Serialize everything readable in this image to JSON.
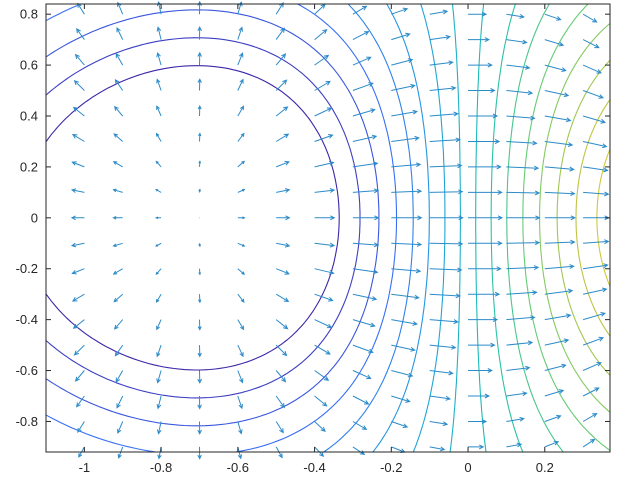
{
  "chart_data": {
    "type": "contour",
    "overlay": "quiver",
    "title": "",
    "xlabel": "",
    "ylabel": "",
    "xlim": [
      -1.1,
      0.37
    ],
    "ylim": [
      -0.92,
      0.84
    ],
    "xticks": [
      -1,
      -0.8,
      -0.6,
      -0.4,
      -0.2,
      0,
      0.2
    ],
    "xtick_labels": [
      "-1",
      "-0.8",
      "-0.6",
      "-0.4",
      "-0.2",
      "0",
      "0.2"
    ],
    "yticks": [
      0.8,
      0.6,
      0.4,
      0.2,
      0,
      -0.2,
      -0.4,
      -0.6,
      -0.8
    ],
    "ytick_labels": [
      "0.8",
      "0.6",
      "0.4",
      "0.2",
      "0",
      "-0.2",
      "-0.4",
      "-0.6",
      "-0.8"
    ],
    "grid": false,
    "legend": "none",
    "function": "z = x*exp(-x^2 - y^2)",
    "contour_levels": [
      -0.3,
      -0.26,
      -0.22,
      -0.18,
      -0.14,
      -0.1,
      -0.06,
      -0.02,
      0.02,
      0.06,
      0.1,
      0.14,
      0.18,
      0.22,
      0.26,
      0.3,
      0.34,
      0.38
    ],
    "quiver_grid": {
      "x": [
        -1,
        -0.9,
        -0.8,
        -0.7,
        -0.6,
        -0.5,
        -0.4,
        -0.3,
        -0.2,
        -0.1,
        0,
        0.1,
        0.2,
        0.3
      ],
      "y": [
        0.8,
        0.7,
        0.6,
        0.5,
        0.4,
        0.3,
        0.2,
        0.1,
        0,
        -0.1,
        -0.2,
        -0.3,
        -0.4,
        -0.5,
        -0.6,
        -0.7,
        -0.8,
        -0.9
      ]
    },
    "colors": {
      "arrow": "#2c8bc9",
      "axis": "#262626",
      "colormap": [
        "#3e26a8",
        "#3a6cf5",
        "#1fa3dd",
        "#1cc0b2",
        "#6fcc6c",
        "#c4c43f",
        "#f0d12b"
      ]
    }
  }
}
